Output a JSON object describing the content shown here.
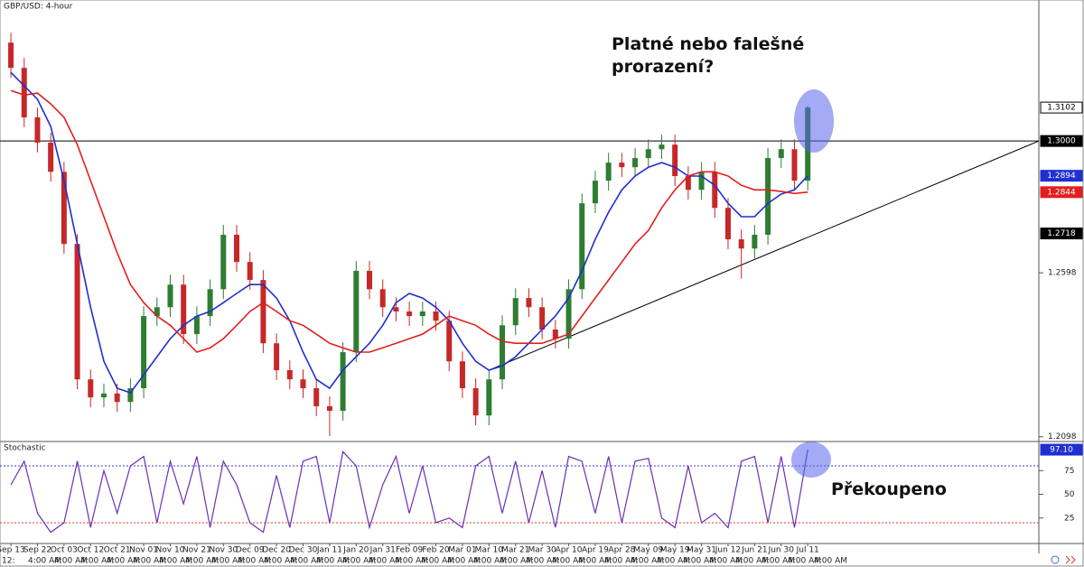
{
  "chart_data": [
    {
      "type": "candlestick",
      "title": "GBP/USD: 4-hour",
      "xlim": [
        -0.82,
        77.4
      ],
      "ylim": [
        1.2089,
        1.343
      ],
      "yticks": [
        1.2598,
        1.2098
      ],
      "xticks": [
        {
          "value": 0,
          "label": "Sep 13"
        },
        {
          "value": 2,
          "label": "Sep 22"
        },
        {
          "value": 4,
          "label": "Oct 03"
        },
        {
          "value": 6,
          "label": "Oct 12"
        },
        {
          "value": 8,
          "label": "Oct 21"
        },
        {
          "value": 10,
          "label": "Nov 01"
        },
        {
          "value": 12,
          "label": "Nov 10"
        },
        {
          "value": 14,
          "label": "Nov 21"
        },
        {
          "value": 16,
          "label": "Nov 30"
        },
        {
          "value": 18,
          "label": "Dec 09"
        },
        {
          "value": 20,
          "label": "Dec 20"
        },
        {
          "value": 22,
          "label": "Dec 30"
        },
        {
          "value": 24,
          "label": "Jan 11"
        },
        {
          "value": 26,
          "label": "Jan 20"
        },
        {
          "value": 28,
          "label": "Jan 31"
        },
        {
          "value": 30,
          "label": "Feb 09"
        },
        {
          "value": 32,
          "label": "Feb 20"
        },
        {
          "value": 34,
          "label": "Mar 01"
        },
        {
          "value": 36,
          "label": "Mar 10"
        },
        {
          "value": 38,
          "label": "Mar 21"
        },
        {
          "value": 40,
          "label": "Mar 30"
        },
        {
          "value": 42,
          "label": "Apr 10"
        },
        {
          "value": 44,
          "label": "Apr 19"
        },
        {
          "value": 46,
          "label": "Apr 28"
        },
        {
          "value": 48,
          "label": "May 09"
        },
        {
          "value": 50,
          "label": "May 19"
        },
        {
          "value": 52,
          "label": "May 31"
        },
        {
          "value": 54,
          "label": "Jun 12"
        },
        {
          "value": 56,
          "label": "Jun 21"
        },
        {
          "value": 58,
          "label": "Jun 30"
        },
        {
          "value": 60,
          "label": "Jul 11"
        }
      ],
      "time_labels": [
        "12:",
        "4:00 AM",
        "4:00 AM",
        "4:00 AM",
        "4:00 AM",
        "4:00 AM",
        "4:00 AM",
        "4:00 AM",
        "4:00 AM",
        "4:00 AM",
        "4:00 AM",
        "4:00 AM",
        "4:00 AM",
        "4:00 AM",
        "4:00 AM",
        "4:00 AM",
        "4:00 AM",
        "4:00 AM",
        "4:00 AM",
        "4:00 AM",
        "4:00 AM",
        "4:00 AM",
        "4:00 AM",
        "4:00 AM",
        "4:00 AM",
        "4:00 AM",
        "4:00 AM",
        "4:00 AM",
        "4:00 AM",
        "4:00 AM",
        "4:00 AM",
        "4:00 AM"
      ],
      "up_color": "#2e7d32",
      "down_color": "#c62828",
      "open": [
        1.33,
        1.3223,
        1.3072,
        1.2995,
        1.2906,
        1.2686,
        1.2273,
        1.2218,
        1.223,
        1.2204,
        1.2246,
        1.2466,
        1.2493,
        1.2562,
        1.2411,
        1.2466,
        1.2548,
        1.2714,
        1.2631,
        1.2576,
        1.2383,
        1.2301,
        1.2273,
        1.2246,
        1.2191,
        1.2177,
        1.2356,
        1.2604,
        1.2548,
        1.2493,
        1.248,
        1.2466,
        1.248,
        1.2452,
        1.2328,
        1.2246,
        1.2163,
        1.2273,
        1.2438,
        1.2521,
        1.2493,
        1.2425,
        1.2397,
        1.2548,
        1.281,
        1.2879,
        1.2934,
        1.292,
        1.2948,
        1.2975,
        1.2989,
        1.2893,
        1.2851,
        1.2906,
        1.2796,
        1.27,
        1.2672,
        1.2714,
        1.2948,
        1.2975,
        1.2879
      ],
      "high": [
        1.333,
        1.3253,
        1.3102,
        1.3025,
        1.2936,
        1.2716,
        1.2303,
        1.226,
        1.226,
        1.2276,
        1.2496,
        1.2523,
        1.2592,
        1.2592,
        1.2496,
        1.2578,
        1.2744,
        1.2744,
        1.2661,
        1.2606,
        1.2413,
        1.2331,
        1.2303,
        1.2276,
        1.2221,
        1.2386,
        1.2634,
        1.2634,
        1.2578,
        1.2523,
        1.251,
        1.251,
        1.251,
        1.2482,
        1.2358,
        1.2276,
        1.2303,
        1.2468,
        1.2551,
        1.2551,
        1.2523,
        1.2455,
        1.2578,
        1.284,
        1.2909,
        1.2964,
        1.2964,
        1.2978,
        1.3005,
        1.3019,
        1.3019,
        1.2923,
        1.2936,
        1.2936,
        1.2826,
        1.273,
        1.2744,
        1.2978,
        1.3005,
        1.3005,
        1.3108
      ],
      "low": [
        1.3193,
        1.3042,
        1.2965,
        1.2876,
        1.2656,
        1.2243,
        1.2188,
        1.2188,
        1.2174,
        1.2174,
        1.2216,
        1.2436,
        1.2463,
        1.2381,
        1.2381,
        1.2436,
        1.2518,
        1.2601,
        1.2546,
        1.2353,
        1.2271,
        1.2243,
        1.2216,
        1.2161,
        1.21,
        1.2147,
        1.2326,
        1.2518,
        1.2463,
        1.245,
        1.2436,
        1.2436,
        1.2422,
        1.2298,
        1.2216,
        1.2133,
        1.2133,
        1.2243,
        1.2408,
        1.2463,
        1.2395,
        1.2367,
        1.2367,
        1.2518,
        1.278,
        1.2849,
        1.289,
        1.289,
        1.2918,
        1.2945,
        1.2863,
        1.2821,
        1.2821,
        1.2766,
        1.267,
        1.258,
        1.2642,
        1.2684,
        1.2918,
        1.2849,
        1.2849
      ],
      "close": [
        1.3223,
        1.3072,
        1.2995,
        1.2906,
        1.2686,
        1.2273,
        1.2218,
        1.223,
        1.2204,
        1.2246,
        1.2466,
        1.2493,
        1.2562,
        1.2411,
        1.2466,
        1.2548,
        1.2714,
        1.2631,
        1.2576,
        1.2383,
        1.2301,
        1.2273,
        1.2246,
        1.2191,
        1.2177,
        1.2356,
        1.2604,
        1.2548,
        1.2493,
        1.248,
        1.2466,
        1.248,
        1.2452,
        1.2328,
        1.2246,
        1.2163,
        1.2273,
        1.2438,
        1.2521,
        1.2493,
        1.2425,
        1.2397,
        1.2548,
        1.281,
        1.2879,
        1.2934,
        1.292,
        1.2948,
        1.2975,
        1.2989,
        1.2893,
        1.2851,
        1.2906,
        1.2796,
        1.27,
        1.2672,
        1.2714,
        1.2948,
        1.2975,
        1.2879,
        1.3102
      ],
      "ma_lines": [
        {
          "color": "#1f2fd0",
          "values": [
            1.3209,
            1.3168,
            1.3127,
            1.3044,
            1.2879,
            1.2686,
            1.2493,
            1.2328,
            1.2246,
            1.2232,
            1.2287,
            1.2342,
            1.2397,
            1.2438,
            1.2466,
            1.248,
            1.2507,
            1.2535,
            1.2562,
            1.2562,
            1.2521,
            1.2452,
            1.2356,
            1.2273,
            1.2246,
            1.2301,
            1.2342,
            1.2383,
            1.2438,
            1.2507,
            1.2535,
            1.2521,
            1.2493,
            1.2452,
            1.2383,
            1.2328,
            1.2301,
            1.2314,
            1.2342,
            1.2383,
            1.2425,
            1.2466,
            1.2521,
            1.2604,
            1.27,
            1.2783,
            1.2851,
            1.2893,
            1.292,
            1.2934,
            1.292,
            1.2893,
            1.2893,
            1.2865,
            1.281,
            1.2769,
            1.2769,
            1.281,
            1.2838,
            1.2851,
            1.2894
          ]
        },
        {
          "color": "#e31e1e",
          "values": [
            1.3154,
            1.314,
            1.3146,
            1.3113,
            1.3072,
            1.2989,
            1.2879,
            1.2769,
            1.2659,
            1.2562,
            1.2507,
            1.2466,
            1.2438,
            1.2397,
            1.2356,
            1.2369,
            1.2397,
            1.2438,
            1.248,
            1.2507,
            1.248,
            1.2452,
            1.2438,
            1.2411,
            1.2383,
            1.2369,
            1.2356,
            1.2356,
            1.2369,
            1.2383,
            1.2397,
            1.2411,
            1.2438,
            1.2466,
            1.2452,
            1.2438,
            1.2411,
            1.2389,
            1.2383,
            1.2383,
            1.2383,
            1.2397,
            1.2411,
            1.2466,
            1.2521,
            1.2576,
            1.2631,
            1.2686,
            1.2727,
            1.2796,
            1.2851,
            1.2893,
            1.2906,
            1.2906,
            1.2893,
            1.2865,
            1.2851,
            1.2851,
            1.2846,
            1.284,
            1.2844
          ]
        }
      ],
      "hlines": [
        {
          "value": 1.3,
          "color": "#000000"
        }
      ],
      "trendline": {
        "x": [
          36,
          77.4
        ],
        "y": [
          1.2301,
          1.3
        ],
        "color": "#000000"
      },
      "price_labels": [
        {
          "value": 1.3102,
          "bg": "#ffffff",
          "fg": "#000000"
        },
        {
          "value": 1.3,
          "label": "1.3000",
          "bg": "#000000",
          "fg": "#ffffff"
        },
        {
          "value": 1.2894,
          "bg": "#1f2fd0",
          "fg": "#ffffff"
        },
        {
          "value": 1.2844,
          "bg": "#e31e1e",
          "fg": "#ffffff"
        },
        {
          "value": 1.2718,
          "bg": "#000000",
          "fg": "#ffffff"
        }
      ],
      "annotation": [
        "Platné nebo falešné",
        "prorazení?"
      ]
    },
    {
      "type": "stochastic",
      "title": "Stochastic",
      "xlim": [
        -0.82,
        77.4
      ],
      "ylim": [
        0,
        100
      ],
      "yticks": [
        75,
        50,
        25
      ],
      "color": "#6a2fb5",
      "values": [
        60,
        85,
        30,
        10,
        20,
        85,
        15,
        75,
        30,
        80,
        90,
        20,
        85,
        40,
        90,
        15,
        85,
        60,
        20,
        10,
        70,
        15,
        85,
        90,
        20,
        95,
        80,
        15,
        60,
        90,
        30,
        80,
        20,
        25,
        15,
        80,
        90,
        30,
        85,
        20,
        75,
        15,
        90,
        85,
        30,
        90,
        20,
        85,
        88,
        25,
        15,
        80,
        20,
        30,
        15,
        85,
        90,
        20,
        90,
        15,
        97.1
      ],
      "levels": [
        {
          "value": 80,
          "color": "#3344cc"
        },
        {
          "value": 20,
          "color": "#e53935"
        }
      ],
      "last_label": {
        "value": 97.1,
        "label": "97.10",
        "bg": "#1f2fd0",
        "fg": "#ffffff"
      },
      "annotation": "Překoupeno"
    }
  ]
}
